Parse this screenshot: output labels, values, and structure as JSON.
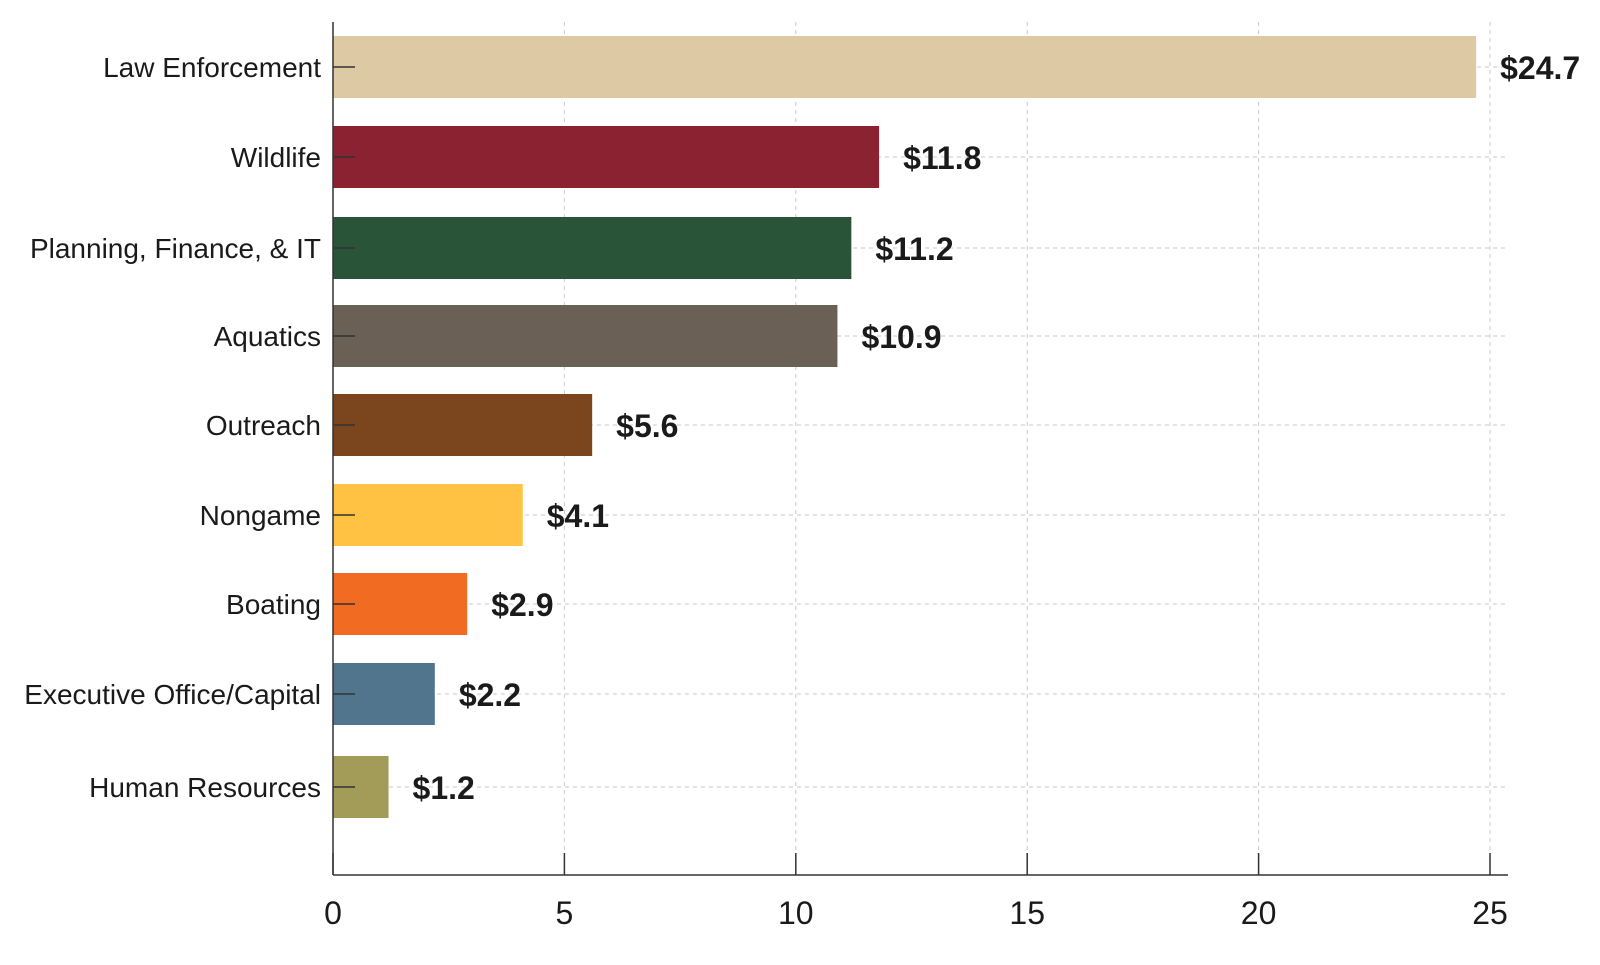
{
  "chart_data": {
    "type": "bar",
    "orientation": "horizontal",
    "title": "",
    "xlabel": "",
    "ylabel": "",
    "xlim": [
      0,
      25
    ],
    "x_ticks": [
      0,
      5,
      10,
      15,
      20,
      25
    ],
    "grid": true,
    "categories": [
      "Law Enforcement",
      "Wildlife",
      "Planning, Finance, & IT",
      "Aquatics",
      "Outreach",
      "Nongame",
      "Boating",
      "Executive Office/Capital",
      "Human Resources"
    ],
    "values": [
      24.7,
      11.8,
      11.2,
      10.9,
      5.6,
      4.1,
      2.9,
      2.2,
      1.2
    ],
    "data_labels": [
      "$24.7",
      "$11.8",
      "$11.2",
      "$10.9",
      "$5.6",
      "$4.1",
      "$2.9",
      "$2.2",
      "$1.2"
    ],
    "colors": [
      "#DDC9A3",
      "#8B2232",
      "#2A5437",
      "#6B6055",
      "#7B451D",
      "#FFC242",
      "#F26B23",
      "#52758E",
      "#A39B58"
    ]
  }
}
